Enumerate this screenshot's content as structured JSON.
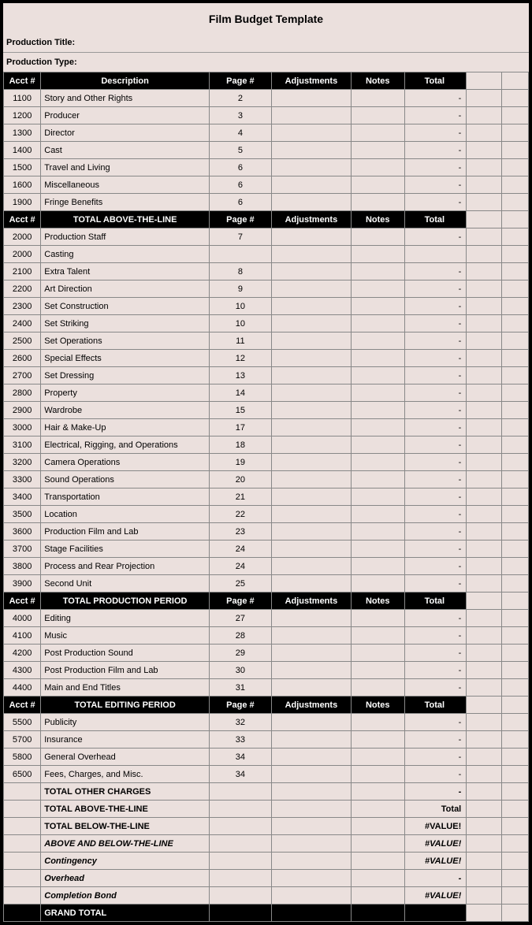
{
  "title": "Film Budget Template",
  "meta": {
    "production_title_label": "Production Title:",
    "production_type_label": "Production Type:"
  },
  "columns": {
    "acct": "Acct #",
    "desc": "Description",
    "page": "Page #",
    "adj": "Adjustments",
    "notes": "Notes",
    "total": "Total"
  },
  "sections": [
    {
      "header_desc": "Description",
      "rows": [
        {
          "acct": "1100",
          "desc": "Story and Other Rights",
          "page": "2",
          "total": "-"
        },
        {
          "acct": "1200",
          "desc": "Producer",
          "page": "3",
          "total": "-"
        },
        {
          "acct": "1300",
          "desc": "Director",
          "page": "4",
          "total": "-"
        },
        {
          "acct": "1400",
          "desc": "Cast",
          "page": "5",
          "total": "-"
        },
        {
          "acct": "1500",
          "desc": "Travel and Living",
          "page": "6",
          "total": "-"
        },
        {
          "acct": "1600",
          "desc": "Miscellaneous",
          "page": "6",
          "total": "-"
        },
        {
          "acct": "1900",
          "desc": "Fringe Benefits",
          "page": "6",
          "total": "-"
        }
      ]
    },
    {
      "header_desc": "TOTAL ABOVE-THE-LINE",
      "rows": [
        {
          "acct": "2000",
          "desc": "Production Staff",
          "page": "7",
          "total": "-"
        },
        {
          "acct": "2000",
          "desc": "Casting",
          "page": "",
          "total": ""
        },
        {
          "acct": "2100",
          "desc": "Extra Talent",
          "page": "8",
          "total": "-"
        },
        {
          "acct": "2200",
          "desc": "Art Direction",
          "page": "9",
          "total": "-"
        },
        {
          "acct": "2300",
          "desc": "Set Construction",
          "page": "10",
          "total": "-"
        },
        {
          "acct": "2400",
          "desc": "Set Striking",
          "page": "10",
          "total": "-"
        },
        {
          "acct": "2500",
          "desc": "Set Operations",
          "page": "11",
          "total": "-"
        },
        {
          "acct": "2600",
          "desc": "Special Effects",
          "page": "12",
          "total": "-"
        },
        {
          "acct": "2700",
          "desc": "Set Dressing",
          "page": "13",
          "total": "-"
        },
        {
          "acct": "2800",
          "desc": "Property",
          "page": "14",
          "total": "-"
        },
        {
          "acct": "2900",
          "desc": "Wardrobe",
          "page": "15",
          "total": "-"
        },
        {
          "acct": "3000",
          "desc": "Hair & Make-Up",
          "page": "17",
          "total": "-"
        },
        {
          "acct": "3100",
          "desc": "Electrical, Rigging, and Operations",
          "page": "18",
          "total": "-"
        },
        {
          "acct": "3200",
          "desc": "Camera Operations",
          "page": "19",
          "total": "-"
        },
        {
          "acct": "3300",
          "desc": "Sound Operations",
          "page": "20",
          "total": "-"
        },
        {
          "acct": "3400",
          "desc": "Transportation",
          "page": "21",
          "total": "-"
        },
        {
          "acct": "3500",
          "desc": "Location",
          "page": "22",
          "total": "-"
        },
        {
          "acct": "3600",
          "desc": "Production Film and Lab",
          "page": "23",
          "total": "-"
        },
        {
          "acct": "3700",
          "desc": "Stage Facilities",
          "page": "24",
          "total": "-"
        },
        {
          "acct": "3800",
          "desc": "Process and Rear Projection",
          "page": "24",
          "total": "-"
        },
        {
          "acct": "3900",
          "desc": "Second Unit",
          "page": "25",
          "total": "-"
        }
      ]
    },
    {
      "header_desc": "TOTAL PRODUCTION PERIOD",
      "rows": [
        {
          "acct": "4000",
          "desc": "Editing",
          "page": "27",
          "total": "-"
        },
        {
          "acct": "4100",
          "desc": "Music",
          "page": "28",
          "total": "-"
        },
        {
          "acct": "4200",
          "desc": "Post Production Sound",
          "page": "29",
          "total": "-"
        },
        {
          "acct": "4300",
          "desc": "Post Production Film and Lab",
          "page": "30",
          "total": "-"
        },
        {
          "acct": "4400",
          "desc": "Main and End Titles",
          "page": "31",
          "total": "-"
        }
      ]
    },
    {
      "header_desc": "TOTAL EDITING PERIOD",
      "rows": [
        {
          "acct": "5500",
          "desc": "Publicity",
          "page": "32",
          "total": "-"
        },
        {
          "acct": "5700",
          "desc": "Insurance",
          "page": "33",
          "total": "-"
        },
        {
          "acct": "5800",
          "desc": "General Overhead",
          "page": "34",
          "total": "-"
        },
        {
          "acct": "6500",
          "desc": "Fees, Charges, and Misc.",
          "page": "34",
          "total": "-"
        }
      ]
    }
  ],
  "summary": [
    {
      "desc": "TOTAL OTHER CHARGES",
      "total": "-",
      "bold": true
    },
    {
      "desc": "TOTAL ABOVE-THE-LINE",
      "total": "Total",
      "bold": true
    },
    {
      "desc": "TOTAL BELOW-THE-LINE",
      "total": "#VALUE!",
      "bold": true
    },
    {
      "desc": "ABOVE AND BELOW-THE-LINE",
      "total": "#VALUE!",
      "bold": true,
      "italic": true
    },
    {
      "desc": "Contingency",
      "total": "#VALUE!",
      "bold": true,
      "italic": true
    },
    {
      "desc": "Overhead",
      "total": "-",
      "bold": true,
      "italic": true
    },
    {
      "desc": "Completion Bond",
      "total": "#VALUE!",
      "bold": true,
      "italic": true
    }
  ],
  "grand_total_label": "GRAND TOTAL",
  "colors": {
    "background": "#ebe0dd",
    "header_bg": "#000000",
    "header_fg": "#ffffff",
    "border": "#888888"
  }
}
